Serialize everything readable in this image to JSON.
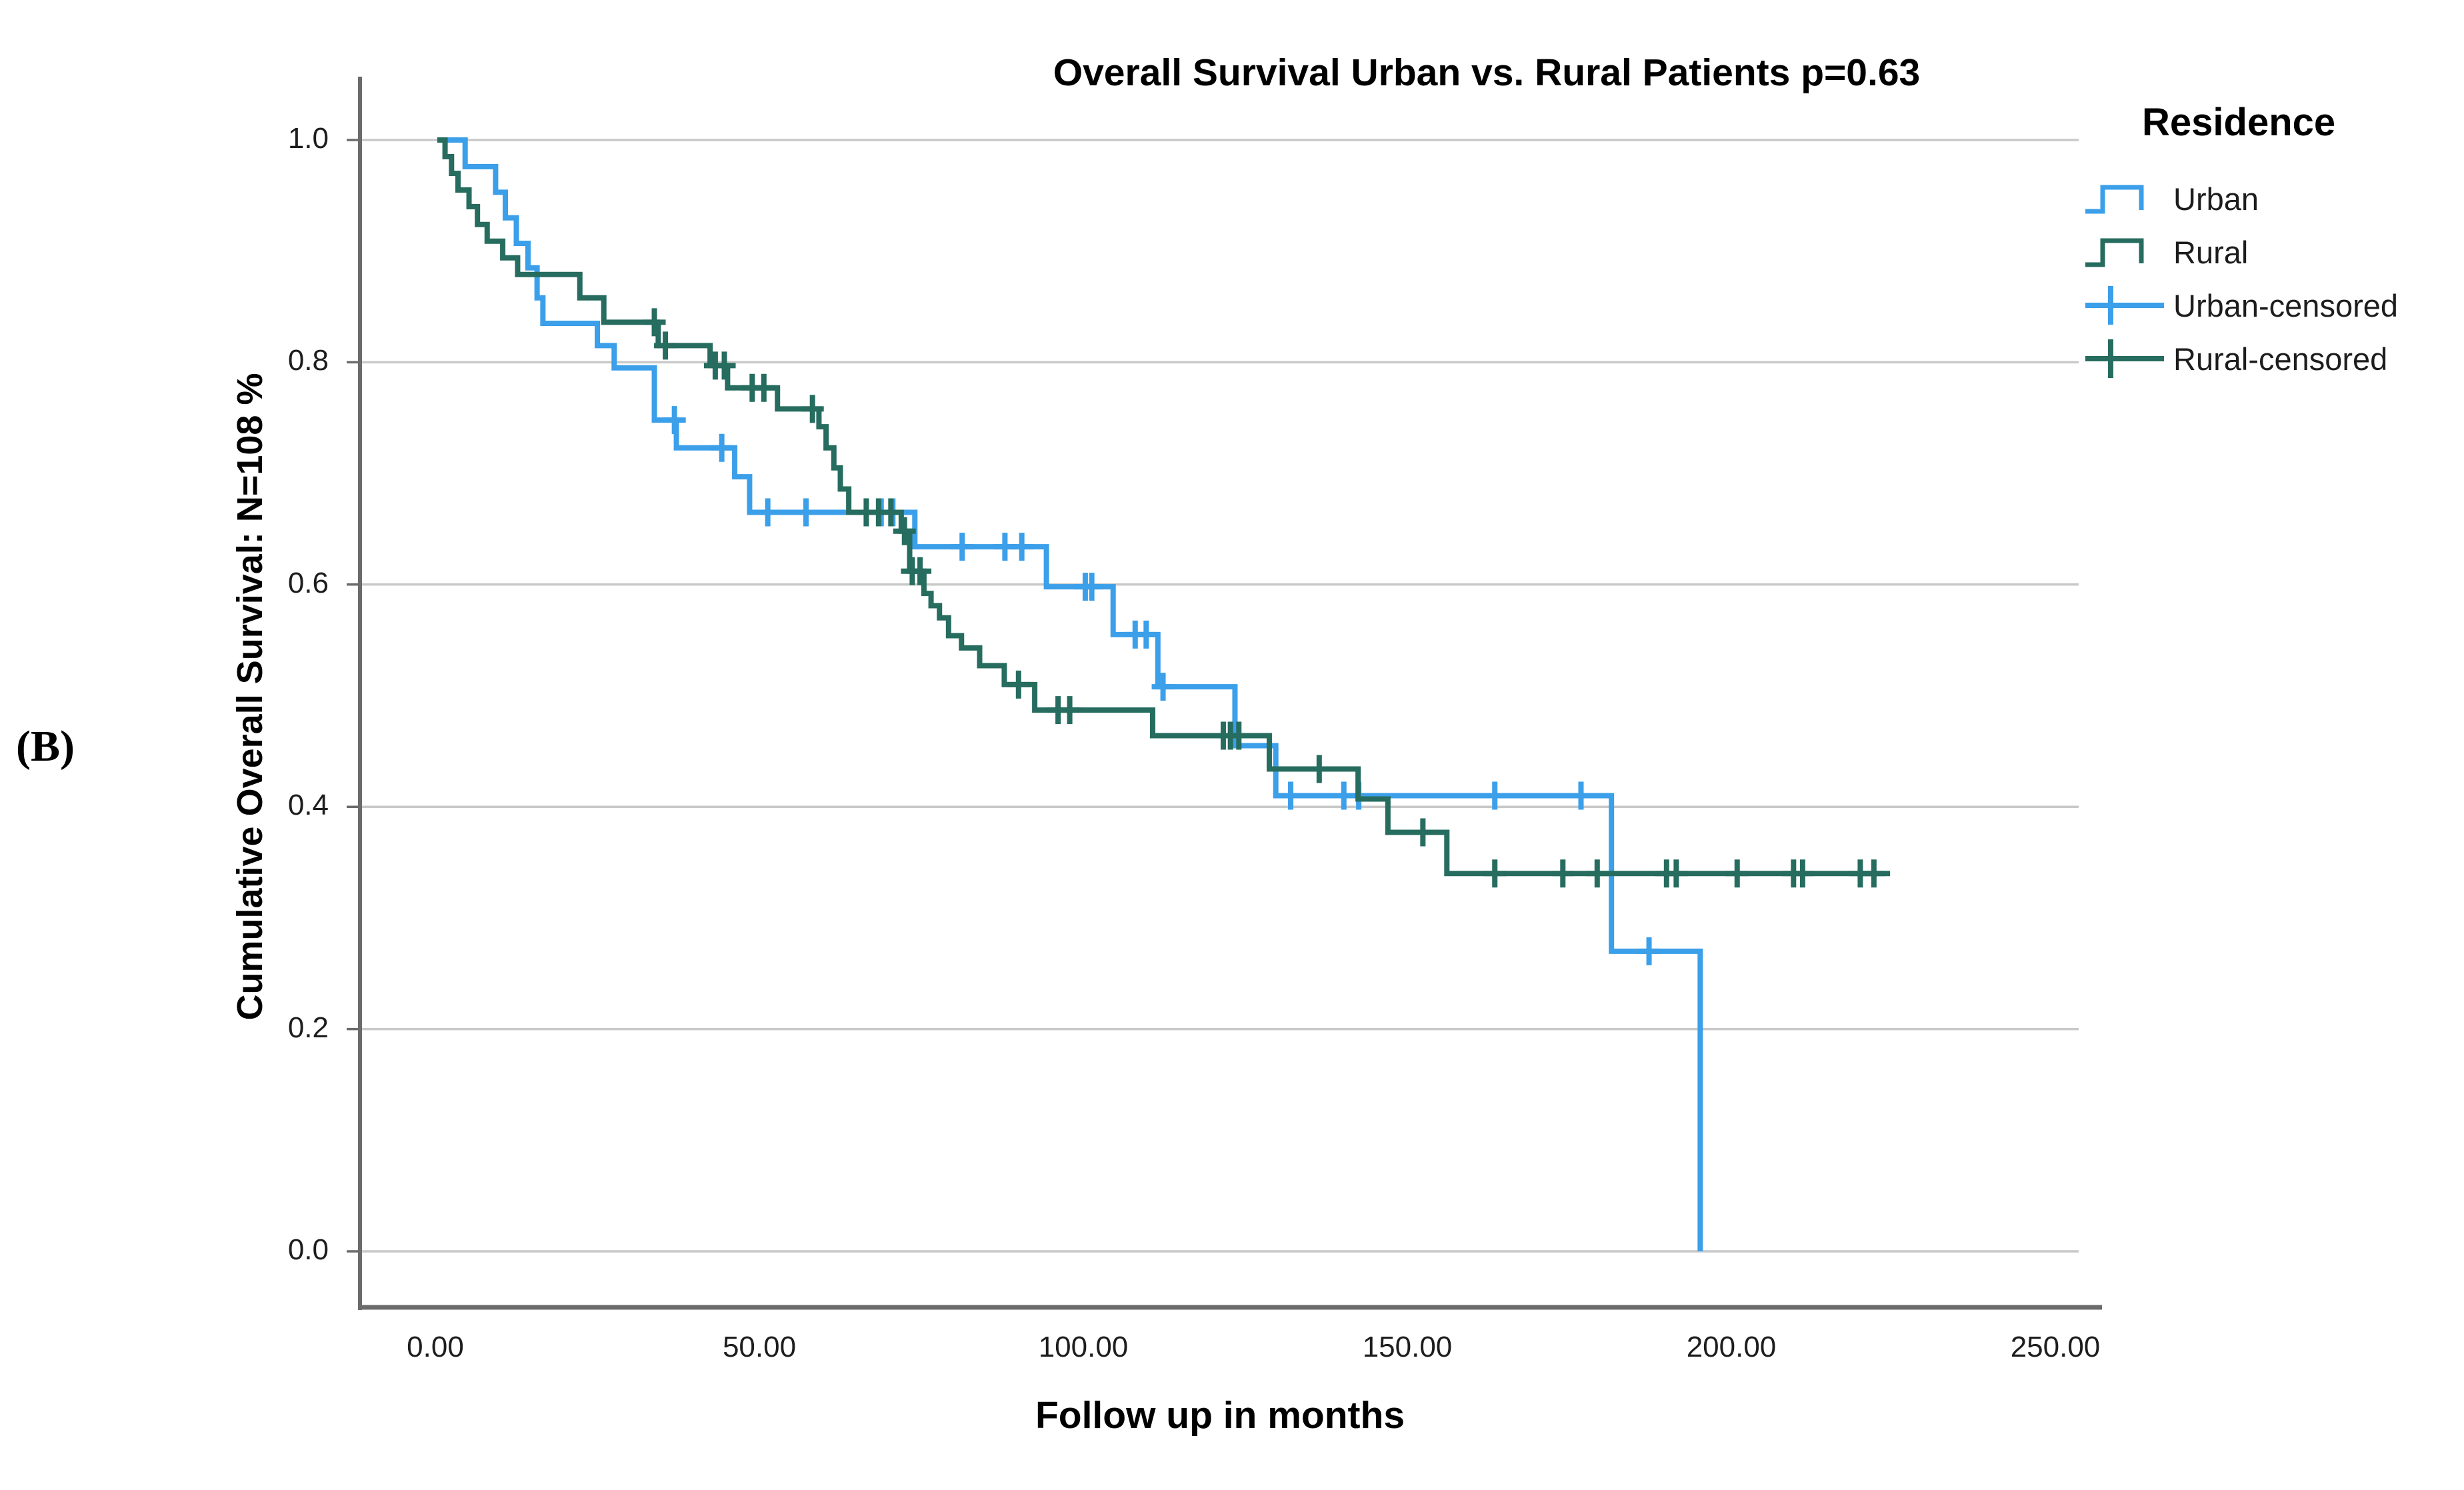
{
  "figure": {
    "panel_label": "(B)"
  },
  "title": "Overall Survival Urban vs. Rural Patients p=0.63",
  "x_axis": {
    "label": "Follow up in months",
    "ticks": [
      {
        "label": "0.00",
        "value": 0
      },
      {
        "label": "50.00",
        "value": 50
      },
      {
        "label": "100.00",
        "value": 100
      },
      {
        "label": "150.00",
        "value": 150
      },
      {
        "label": "200.00",
        "value": 200
      },
      {
        "label": "250.00",
        "value": 250
      }
    ]
  },
  "y_axis": {
    "label": "Cumulative Overall Survival: N=108 %",
    "ticks": [
      {
        "label": "1.0",
        "value": 1.0
      },
      {
        "label": "0.8",
        "value": 0.8
      },
      {
        "label": "0.6",
        "value": 0.6
      },
      {
        "label": "0.4",
        "value": 0.4
      },
      {
        "label": "0.2",
        "value": 0.2
      },
      {
        "label": "0.0",
        "value": 0.0
      }
    ]
  },
  "legend": {
    "title": "Residence",
    "items": [
      {
        "label": "Urban",
        "symbol": "step-line",
        "color": "#3B9FE9"
      },
      {
        "label": "Rural",
        "symbol": "step-line",
        "color": "#266C5F"
      },
      {
        "label": "Urban-censored",
        "symbol": "censor-plus",
        "color": "#3B9FE9"
      },
      {
        "label": "Rural-censored",
        "symbol": "censor-plus",
        "color": "#266C5F"
      }
    ]
  },
  "colors": {
    "urban": "#3B9FE9",
    "rural": "#266C5F",
    "gridline": "#C9C9C9",
    "axis": "#6B6B6B",
    "text": "#000000",
    "background": "#FFFFFF"
  },
  "chart_data": {
    "type": "line",
    "subtype": "kaplan-meier-step",
    "title": "Overall Survival Urban vs. Rural Patients p=0.63",
    "xlabel": "Follow up in months",
    "ylabel": "Cumulative Overall Survival: N=108 %",
    "p_value": "0.63",
    "n_total": 108,
    "xlim": [
      0,
      250
    ],
    "ylim": [
      0,
      1
    ],
    "grid": true,
    "legend_position": "right",
    "series": [
      {
        "name": "Urban",
        "color": "#3B9FE9",
        "steps": [
          [
            1.8,
            1.0
          ],
          [
            4.6,
            0.976
          ],
          [
            9.3,
            0.953
          ],
          [
            10.8,
            0.93
          ],
          [
            12.5,
            0.907
          ],
          [
            14.3,
            0.885
          ],
          [
            15.7,
            0.858
          ],
          [
            16.6,
            0.835
          ],
          [
            25.0,
            0.815
          ],
          [
            27.6,
            0.795
          ],
          [
            33.8,
            0.748
          ],
          [
            37.2,
            0.723
          ],
          [
            46.2,
            0.697
          ],
          [
            48.5,
            0.665
          ],
          [
            74.0,
            0.634
          ],
          [
            94.3,
            0.598
          ],
          [
            104.6,
            0.555
          ],
          [
            111.5,
            0.508
          ],
          [
            123.4,
            0.455
          ],
          [
            129.7,
            0.41
          ],
          [
            181.5,
            0.27
          ],
          [
            195.2,
            0.0
          ]
        ],
        "end_time": 195.2,
        "censored": [
          [
            36.9,
            0.748
          ],
          [
            44.2,
            0.723
          ],
          [
            51.3,
            0.665
          ],
          [
            57.2,
            0.665
          ],
          [
            68.8,
            0.665
          ],
          [
            70.6,
            0.665
          ],
          [
            81.3,
            0.634
          ],
          [
            87.9,
            0.634
          ],
          [
            90.5,
            0.634
          ],
          [
            100.3,
            0.598
          ],
          [
            101.3,
            0.598
          ],
          [
            108.0,
            0.555
          ],
          [
            109.7,
            0.555
          ],
          [
            112.3,
            0.508
          ],
          [
            132.0,
            0.41
          ],
          [
            140.2,
            0.41
          ],
          [
            142.5,
            0.41
          ],
          [
            163.5,
            0.41
          ],
          [
            176.8,
            0.41
          ],
          [
            187.3,
            0.27
          ]
        ]
      },
      {
        "name": "Rural",
        "color": "#266C5F",
        "steps": [
          [
            0.3,
            1.0
          ],
          [
            1.5,
            0.985
          ],
          [
            2.5,
            0.97
          ],
          [
            3.5,
            0.955
          ],
          [
            5.2,
            0.94
          ],
          [
            6.5,
            0.924
          ],
          [
            8.0,
            0.909
          ],
          [
            10.4,
            0.894
          ],
          [
            12.7,
            0.879
          ],
          [
            22.3,
            0.858
          ],
          [
            26.0,
            0.836
          ],
          [
            34.4,
            0.815
          ],
          [
            42.4,
            0.797
          ],
          [
            45.1,
            0.777
          ],
          [
            52.8,
            0.758
          ],
          [
            59.2,
            0.742
          ],
          [
            60.3,
            0.723
          ],
          [
            61.5,
            0.705
          ],
          [
            62.5,
            0.686
          ],
          [
            63.8,
            0.665
          ],
          [
            71.9,
            0.648
          ],
          [
            73.2,
            0.612
          ],
          [
            75.4,
            0.592
          ],
          [
            76.5,
            0.581
          ],
          [
            77.8,
            0.57
          ],
          [
            79.2,
            0.554
          ],
          [
            81.2,
            0.543
          ],
          [
            84.0,
            0.527
          ],
          [
            87.8,
            0.51
          ],
          [
            92.5,
            0.487
          ],
          [
            110.7,
            0.464
          ],
          [
            128.7,
            0.434
          ],
          [
            142.4,
            0.407
          ],
          [
            147.0,
            0.377
          ],
          [
            156.1,
            0.34
          ]
        ],
        "end_time": 224.5,
        "censored": [
          [
            33.8,
            0.836
          ],
          [
            35.5,
            0.815
          ],
          [
            43.2,
            0.797
          ],
          [
            44.6,
            0.797
          ],
          [
            48.9,
            0.777
          ],
          [
            50.7,
            0.777
          ],
          [
            58.2,
            0.758
          ],
          [
            66.5,
            0.665
          ],
          [
            68.4,
            0.665
          ],
          [
            70.3,
            0.665
          ],
          [
            72.4,
            0.648
          ],
          [
            73.6,
            0.612
          ],
          [
            74.8,
            0.612
          ],
          [
            90.0,
            0.51
          ],
          [
            96.1,
            0.487
          ],
          [
            97.9,
            0.487
          ],
          [
            121.6,
            0.464
          ],
          [
            122.7,
            0.464
          ],
          [
            124.0,
            0.464
          ],
          [
            136.4,
            0.434
          ],
          [
            152.4,
            0.377
          ],
          [
            163.5,
            0.34
          ],
          [
            174.0,
            0.34
          ],
          [
            179.3,
            0.34
          ],
          [
            190.0,
            0.34
          ],
          [
            191.5,
            0.34
          ],
          [
            200.9,
            0.34
          ],
          [
            209.6,
            0.34
          ],
          [
            211.0,
            0.34
          ],
          [
            219.9,
            0.34
          ],
          [
            222.0,
            0.34
          ]
        ]
      }
    ]
  }
}
